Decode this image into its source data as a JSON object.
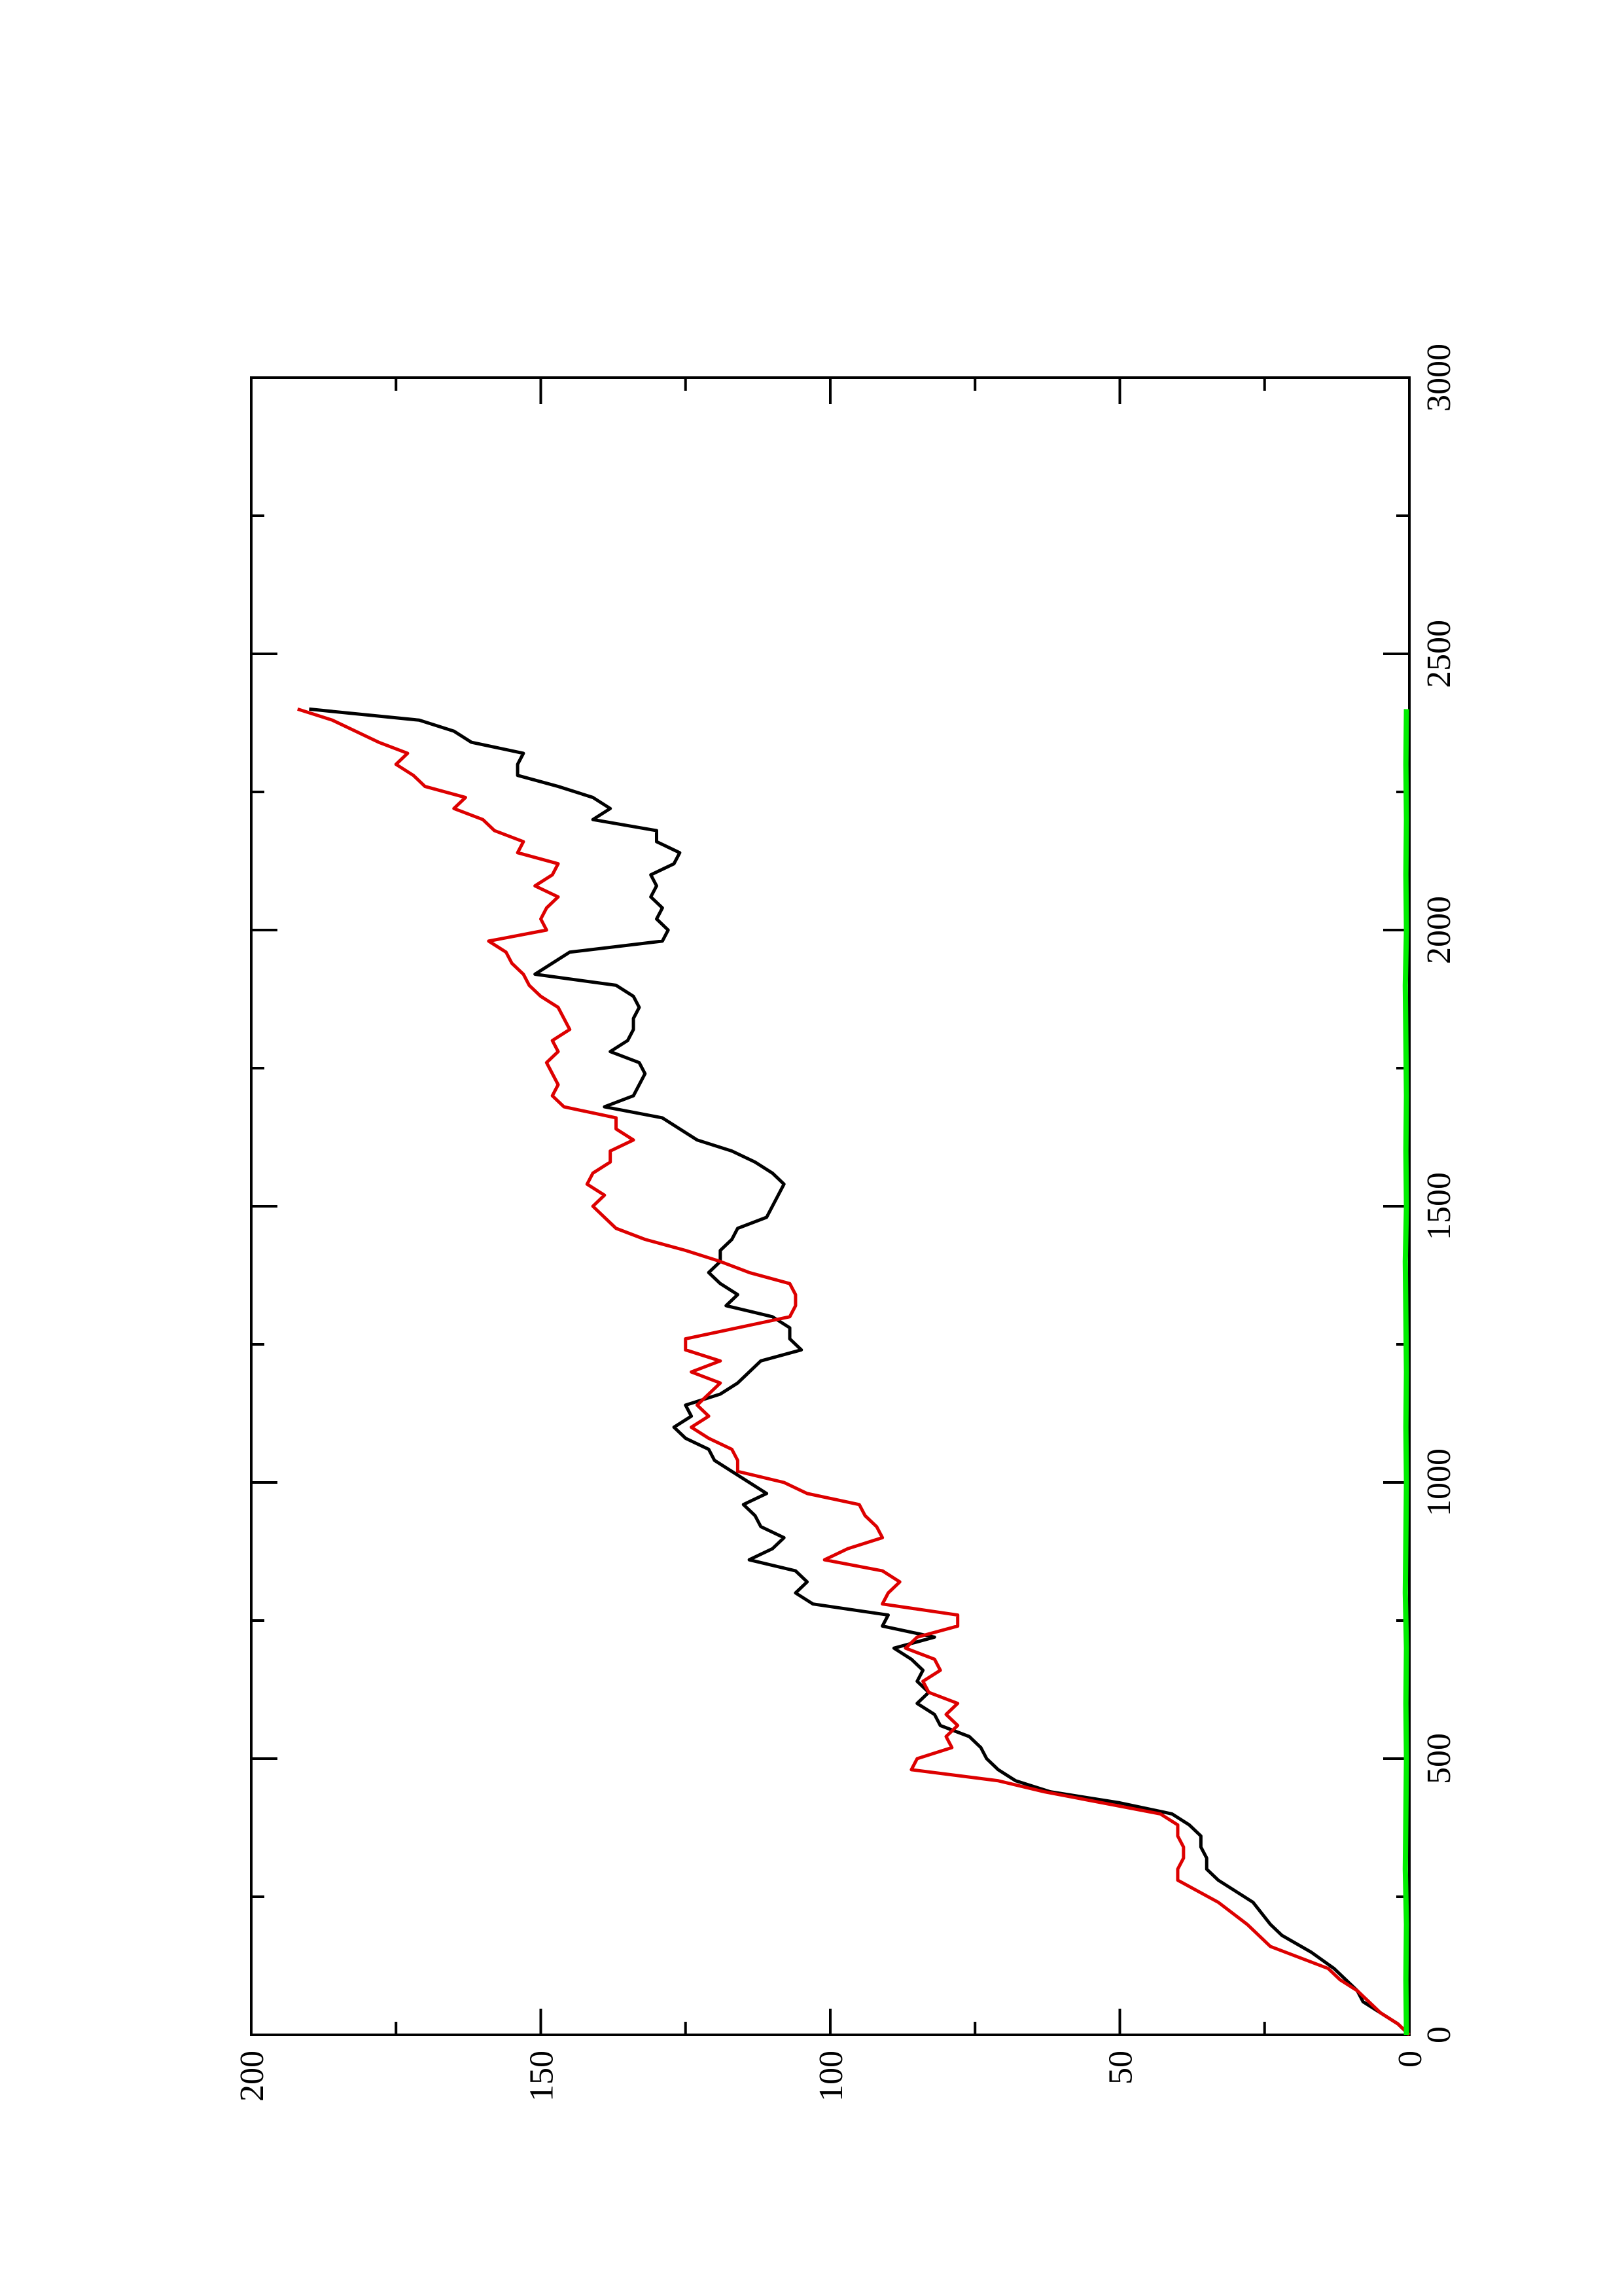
{
  "chart_data": {
    "type": "line",
    "title": "",
    "xlabel": "",
    "ylabel": "",
    "orientation": "rotated-90-ccw",
    "xlim": [
      0,
      3000
    ],
    "ylim": [
      0,
      200
    ],
    "x_major_ticks": [
      0,
      500,
      1000,
      1500,
      2000,
      2500,
      3000
    ],
    "x_minor_ticks": [
      250,
      750,
      1250,
      1750,
      2250,
      2750
    ],
    "y_major_ticks": [
      0,
      50,
      100,
      150,
      200
    ],
    "y_minor_ticks": [
      25,
      75,
      125,
      175
    ],
    "x_tick_labels": [
      "0",
      "500",
      "1000",
      "1500",
      "2000",
      "2500",
      "3000"
    ],
    "y_tick_labels": [
      "0",
      "50",
      "100",
      "150",
      "200"
    ],
    "grid": false,
    "legend": "none",
    "series": [
      {
        "color": "#000000",
        "x": [
          0,
          20,
          40,
          60,
          80,
          100,
          120,
          150,
          180,
          200,
          240,
          280,
          300,
          320,
          340,
          360,
          380,
          400,
          420,
          440,
          460,
          480,
          500,
          520,
          540,
          560,
          580,
          600,
          620,
          640,
          660,
          680,
          700,
          720,
          740,
          760,
          780,
          800,
          820,
          840,
          860,
          880,
          900,
          920,
          940,
          960,
          980,
          1000,
          1020,
          1040,
          1060,
          1080,
          1100,
          1120,
          1140,
          1160,
          1180,
          1200,
          1220,
          1240,
          1260,
          1280,
          1300,
          1320,
          1340,
          1360,
          1380,
          1400,
          1420,
          1440,
          1460,
          1480,
          1500,
          1520,
          1540,
          1560,
          1580,
          1600,
          1620,
          1640,
          1660,
          1680,
          1700,
          1720,
          1740,
          1760,
          1780,
          1800,
          1820,
          1840,
          1860,
          1880,
          1900,
          1920,
          1940,
          1960,
          1980,
          2000,
          2020,
          2040,
          2060,
          2080,
          2100,
          2120,
          2140,
          2160,
          2180,
          2200,
          2220,
          2240,
          2260,
          2280,
          2300,
          2320,
          2340,
          2360,
          2380,
          2400
        ],
        "y": [
          0,
          2,
          5,
          8,
          9,
          11,
          13,
          17,
          22,
          24,
          27,
          33,
          35,
          35,
          36,
          36,
          38,
          41,
          50,
          62,
          68,
          71,
          73,
          74,
          76,
          81,
          82,
          85,
          83,
          85,
          84,
          86,
          89,
          82,
          91,
          90,
          103,
          106,
          104,
          106,
          114,
          110,
          108,
          112,
          113,
          115,
          111,
          114,
          117,
          120,
          121,
          125,
          127,
          124,
          125,
          119,
          116,
          114,
          112,
          105,
          107,
          107,
          110,
          118,
          116,
          119,
          121,
          119,
          119,
          117,
          116,
          111,
          110,
          109,
          108,
          110,
          113,
          117,
          123,
          126,
          129,
          139,
          134,
          133,
          132,
          133,
          138,
          135,
          134,
          134,
          133,
          134,
          137,
          151,
          148,
          145,
          129,
          128,
          130,
          129,
          131,
          130,
          131,
          127,
          126,
          130,
          130,
          141,
          138,
          141,
          147,
          154,
          154,
          153,
          162,
          165,
          171,
          190
        ]
      },
      {
        "color": "#dd0000",
        "x": [
          0,
          20,
          40,
          60,
          80,
          100,
          120,
          140,
          160,
          200,
          240,
          280,
          300,
          320,
          340,
          360,
          380,
          400,
          420,
          440,
          460,
          480,
          500,
          520,
          540,
          560,
          580,
          600,
          620,
          640,
          660,
          680,
          700,
          720,
          740,
          760,
          780,
          800,
          820,
          840,
          860,
          880,
          900,
          920,
          940,
          960,
          980,
          1000,
          1020,
          1040,
          1060,
          1080,
          1100,
          1120,
          1140,
          1160,
          1180,
          1200,
          1220,
          1240,
          1260,
          1280,
          1300,
          1320,
          1340,
          1360,
          1380,
          1400,
          1420,
          1440,
          1460,
          1480,
          1500,
          1520,
          1540,
          1560,
          1580,
          1600,
          1620,
          1640,
          1660,
          1680,
          1700,
          1720,
          1740,
          1760,
          1780,
          1800,
          1820,
          1840,
          1860,
          1880,
          1900,
          1920,
          1940,
          1960,
          1980,
          2000,
          2020,
          2040,
          2060,
          2080,
          2100,
          2120,
          2140,
          2160,
          2180,
          2200,
          2220,
          2240,
          2260,
          2280,
          2300,
          2320,
          2340,
          2360,
          2380,
          2400
        ],
        "y": [
          0,
          2,
          5,
          7,
          9,
          12,
          14,
          19,
          24,
          28,
          33,
          40,
          40,
          39,
          39,
          40,
          40,
          43,
          53,
          63,
          71,
          86,
          85,
          79,
          80,
          78,
          80,
          78,
          83,
          84,
          81,
          82,
          87,
          85,
          78,
          78,
          91,
          90,
          88,
          91,
          101,
          97,
          91,
          92,
          94,
          95,
          104,
          108,
          116,
          116,
          117,
          121,
          124,
          121,
          123,
          121,
          119,
          124,
          119,
          125,
          125,
          116,
          107,
          106,
          106,
          107,
          114,
          119,
          125,
          132,
          137,
          139,
          141,
          139,
          142,
          141,
          138,
          138,
          134,
          137,
          137,
          146,
          148,
          147,
          148,
          149,
          147,
          148,
          145,
          146,
          147,
          150,
          152,
          153,
          155,
          156,
          159,
          149,
          150,
          149,
          147,
          151,
          148,
          147,
          154,
          153,
          158,
          160,
          165,
          163,
          170,
          172,
          175,
          173,
          178,
          182,
          186,
          192
        ]
      },
      {
        "color": "#00ee00",
        "x": [
          0,
          100,
          200,
          300,
          400,
          500,
          600,
          700,
          800,
          900,
          1000,
          1100,
          1200,
          1300,
          1400,
          1500,
          1600,
          1700,
          1800,
          1900,
          2000,
          2100,
          2200,
          2300,
          2400
        ],
        "y": [
          0.5,
          0.6,
          0.5,
          0.7,
          0.6,
          0.5,
          0.6,
          0.5,
          0.7,
          0.6,
          0.5,
          0.6,
          0.5,
          0.6,
          0.7,
          0.5,
          0.6,
          0.5,
          0.6,
          0.7,
          0.5,
          0.6,
          0.5,
          0.6,
          0.5
        ]
      }
    ]
  }
}
